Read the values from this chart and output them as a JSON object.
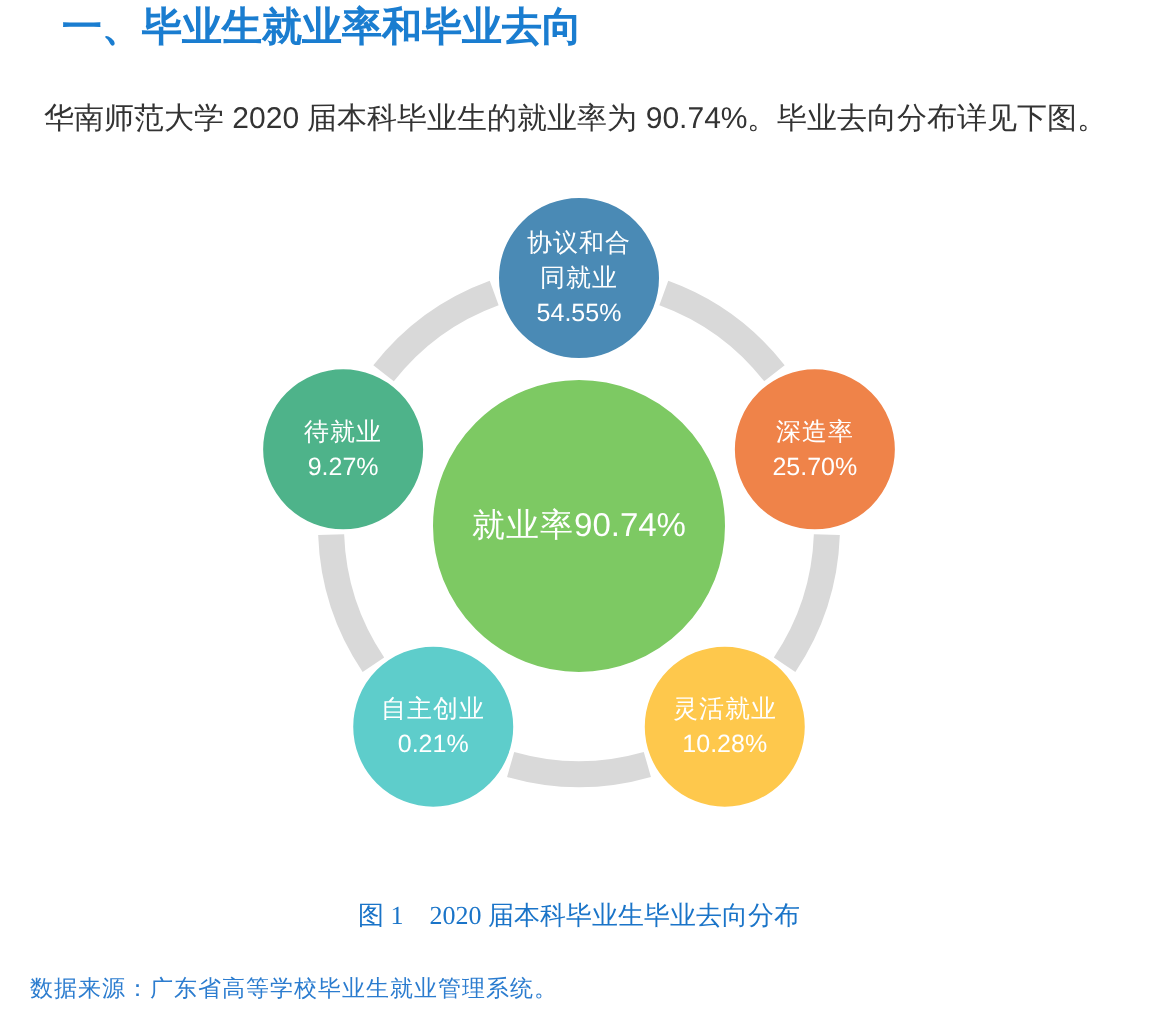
{
  "chart_data": {
    "type": "other",
    "title": "一、毕业生就业率和毕业去向",
    "subtitle": "华南师范大学 2020 届本科毕业生的就业率为 90.74%。毕业去向分布详见下图。",
    "categories": [
      "就业率",
      "协议和合同就业",
      "深造率",
      "灵活就业",
      "自主创业",
      "待就业"
    ],
    "values": [
      90.74,
      54.55,
      25.7,
      10.28,
      0.21,
      9.27
    ],
    "value_labels": [
      "90.74%",
      "54.55%",
      "25.70%",
      "10.28%",
      "0.21%",
      "9.27%"
    ],
    "colors": [
      "#7dc963",
      "#4a8ab5",
      "#ef8349",
      "#fec84c",
      "#5ecdcb",
      "#4eb38a"
    ],
    "annotations": [
      "图 1　2020 届本科毕业生毕业去向分布",
      "数据来源：广东省高等学校毕业生就业管理系统。"
    ]
  }
}
